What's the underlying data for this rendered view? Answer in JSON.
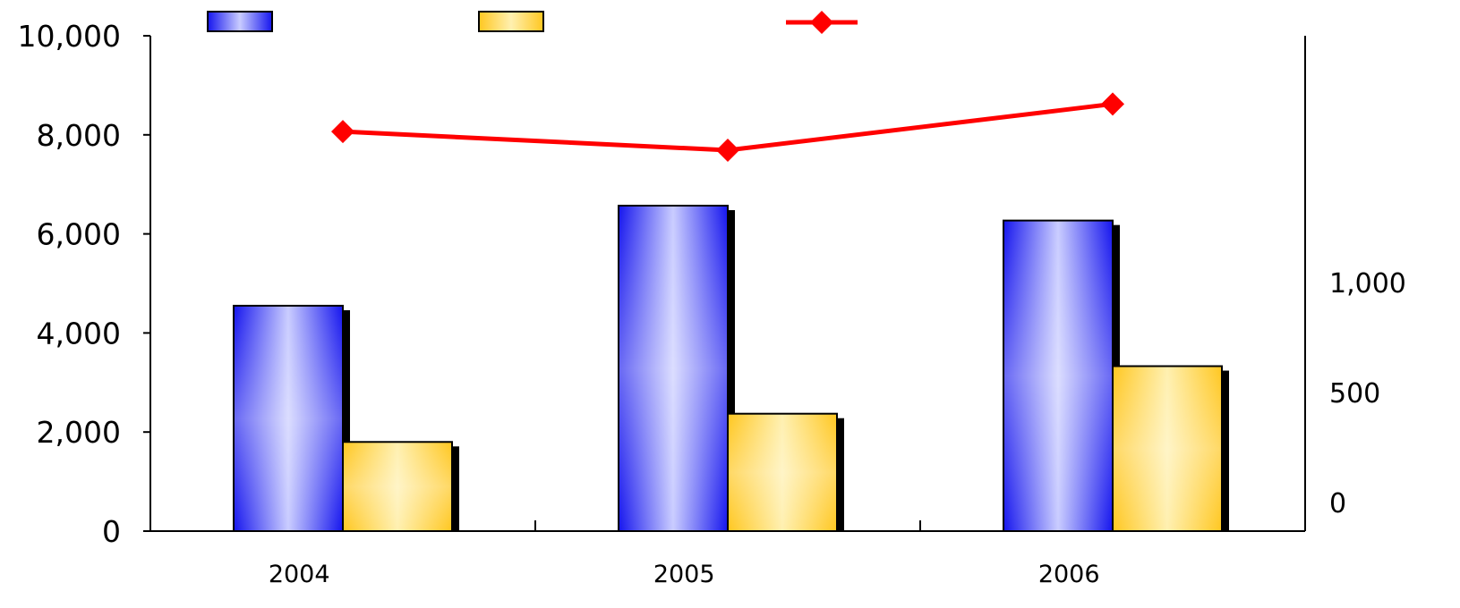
{
  "chart_data": {
    "type": "bar",
    "categories": [
      "2004",
      "2005",
      "2006"
    ],
    "series": [
      {
        "kind": "bar",
        "axis": "left",
        "values": [
          4550,
          6570,
          6270
        ],
        "color": "#2222ff"
      },
      {
        "kind": "bar",
        "axis": "left",
        "values": [
          1800,
          2370,
          3330
        ],
        "color": "#ffcc33"
      },
      {
        "kind": "line",
        "axis": "right",
        "values": [
          1685,
          1600,
          1810
        ],
        "color": "#ff0000",
        "marker": "diamond"
      }
    ],
    "left_axis": {
      "ticks": [
        "0",
        "2,000",
        "4,000",
        "6,000",
        "8,000",
        "10,000"
      ],
      "ylim": [
        0,
        10000
      ]
    },
    "right_axis": {
      "ticks": [
        "0",
        "500",
        "1,000"
      ],
      "ylim": [
        -130,
        2120
      ]
    },
    "legend": "top",
    "grid": false,
    "title": "",
    "xlabel": "",
    "ylabel": ""
  }
}
